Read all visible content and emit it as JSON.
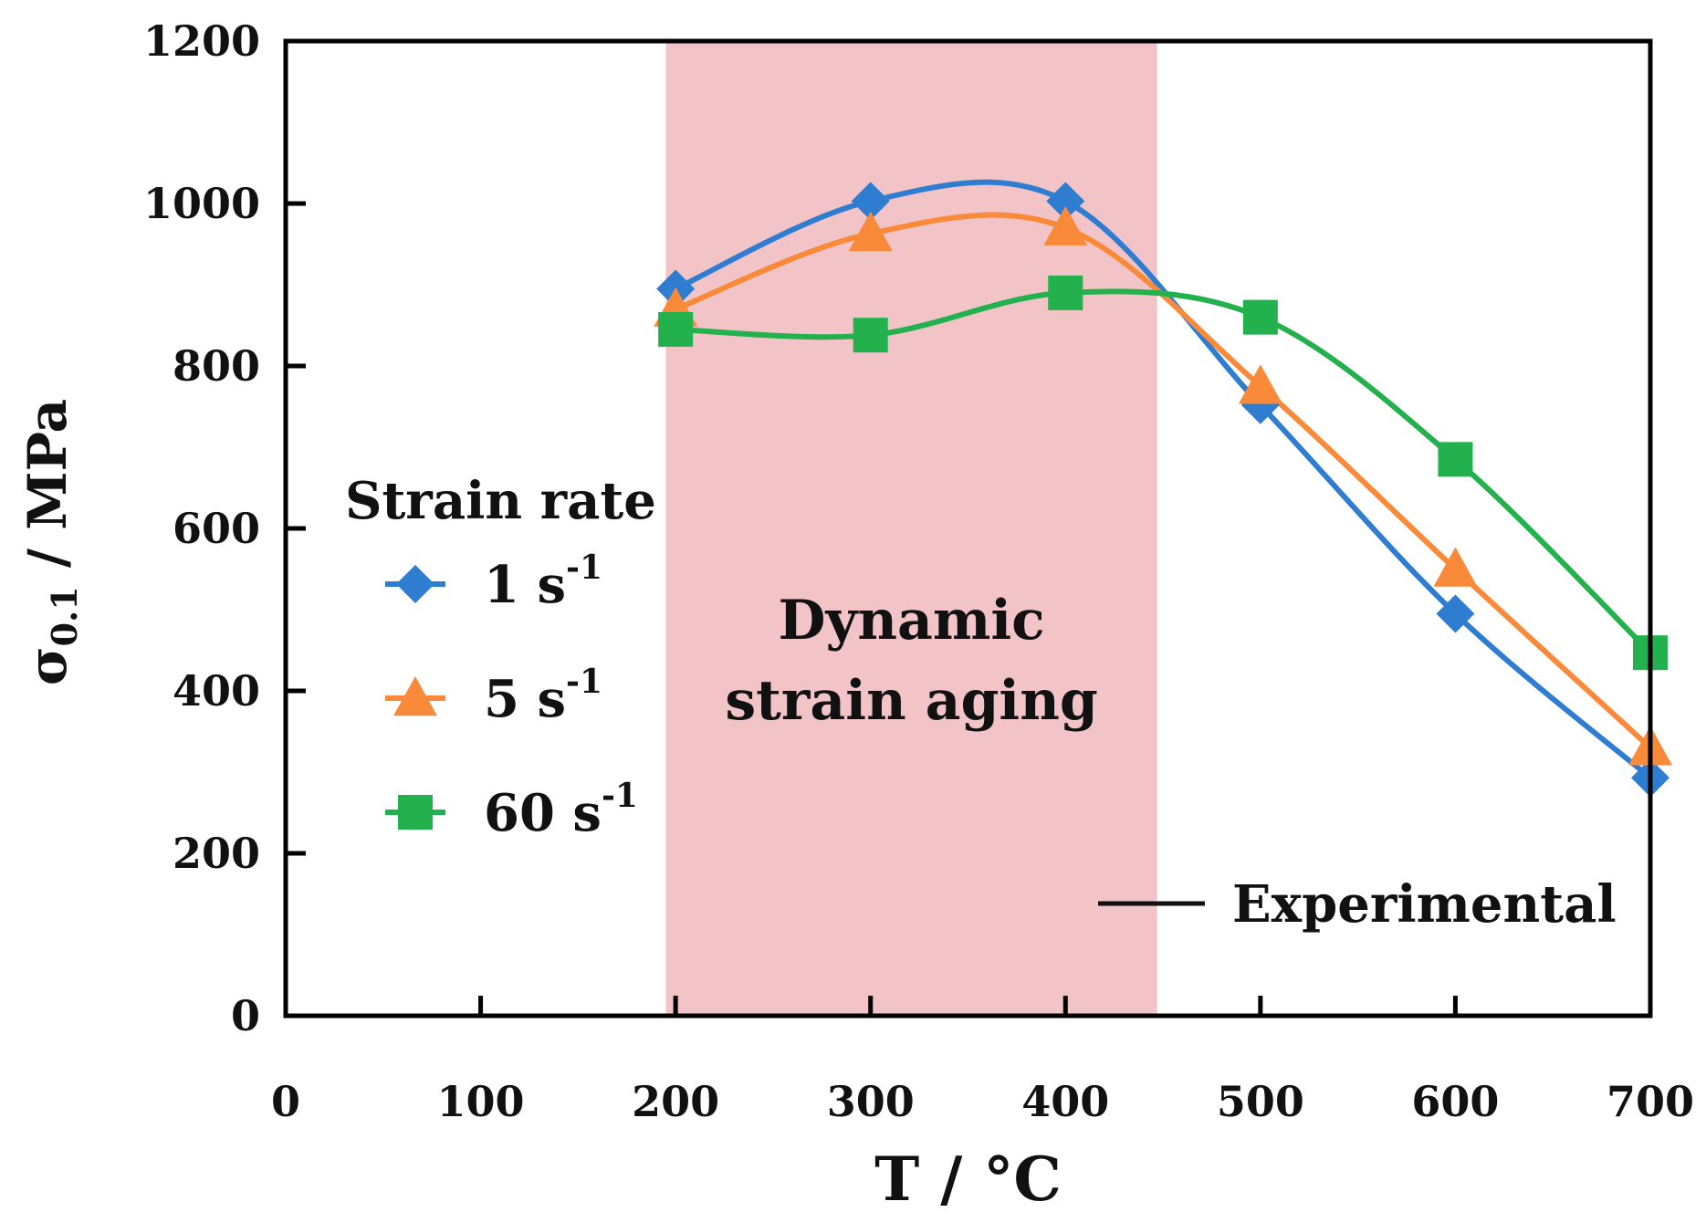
{
  "chart_data": {
    "type": "line",
    "xlabel": "T / °C",
    "ylabel": {
      "symbol": "σ",
      "subscript": "0.1",
      "unit": " / MPa"
    },
    "xlim": [
      0,
      700
    ],
    "ylim": [
      0,
      1200
    ],
    "xticks": [
      0,
      100,
      200,
      300,
      400,
      500,
      600,
      700
    ],
    "yticks": [
      0,
      200,
      400,
      600,
      800,
      1000,
      1200
    ],
    "grid": false,
    "shaded_region": {
      "x_start": 195,
      "x_end": 447,
      "label_line1": "Dynamic",
      "label_line2": "strain aging",
      "color": "#f2c4c8"
    },
    "legend": {
      "title": "Strain rate",
      "placement": "left-center"
    },
    "series": [
      {
        "name": "1 s-1",
        "label_main": "1 s",
        "label_sup": "-1",
        "color": "#2f7dd1",
        "marker": "diamond",
        "x": [
          200,
          300,
          400,
          500,
          600,
          700
        ],
        "y": [
          895,
          1003,
          1003,
          752,
          495,
          293
        ]
      },
      {
        "name": "5 s-1",
        "label_main": "5 s",
        "label_sup": "-1",
        "color": "#f88a3a",
        "marker": "triangle",
        "x": [
          200,
          300,
          400,
          500,
          600,
          700
        ],
        "y": [
          870,
          963,
          970,
          775,
          550,
          330
        ]
      },
      {
        "name": "60 s-1",
        "label_main": "60 s",
        "label_sup": "-1",
        "color": "#22b14c",
        "marker": "square",
        "x": [
          200,
          300,
          400,
          500,
          600,
          700
        ],
        "y": [
          845,
          838,
          890,
          860,
          685,
          447
        ]
      }
    ],
    "line_legend": {
      "label": "Experimental",
      "color": "#111111"
    }
  }
}
